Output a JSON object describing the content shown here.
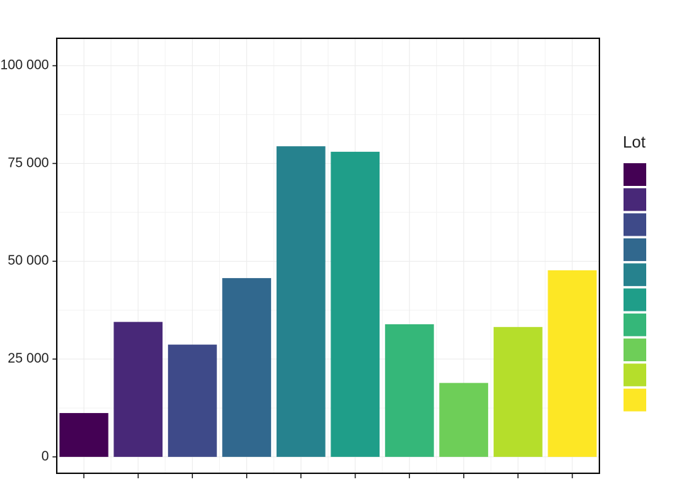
{
  "chart_data": {
    "type": "bar",
    "legend_title": "Lot",
    "categories": [
      null,
      null,
      null,
      null,
      null,
      null,
      null,
      null,
      null,
      null
    ],
    "values": [
      11200,
      34500,
      28700,
      45700,
      79400,
      78000,
      33900,
      18900,
      33200,
      47700
    ],
    "colors": [
      "#440154",
      "#482878",
      "#3e4a89",
      "#31688e",
      "#26828e",
      "#1f9e89",
      "#35b779",
      "#6ece58",
      "#b5de2b",
      "#fde725"
    ],
    "ylim": [
      -4200,
      107000
    ],
    "yticks": [
      0,
      {
        "value": 25000,
        "label": "25 000"
      },
      {
        "value": 50000,
        "label": "50 000"
      },
      {
        "value": 75000,
        "label": "75 000"
      },
      {
        "value": 100000,
        "label": "100 000"
      }
    ],
    "grid": true
  }
}
